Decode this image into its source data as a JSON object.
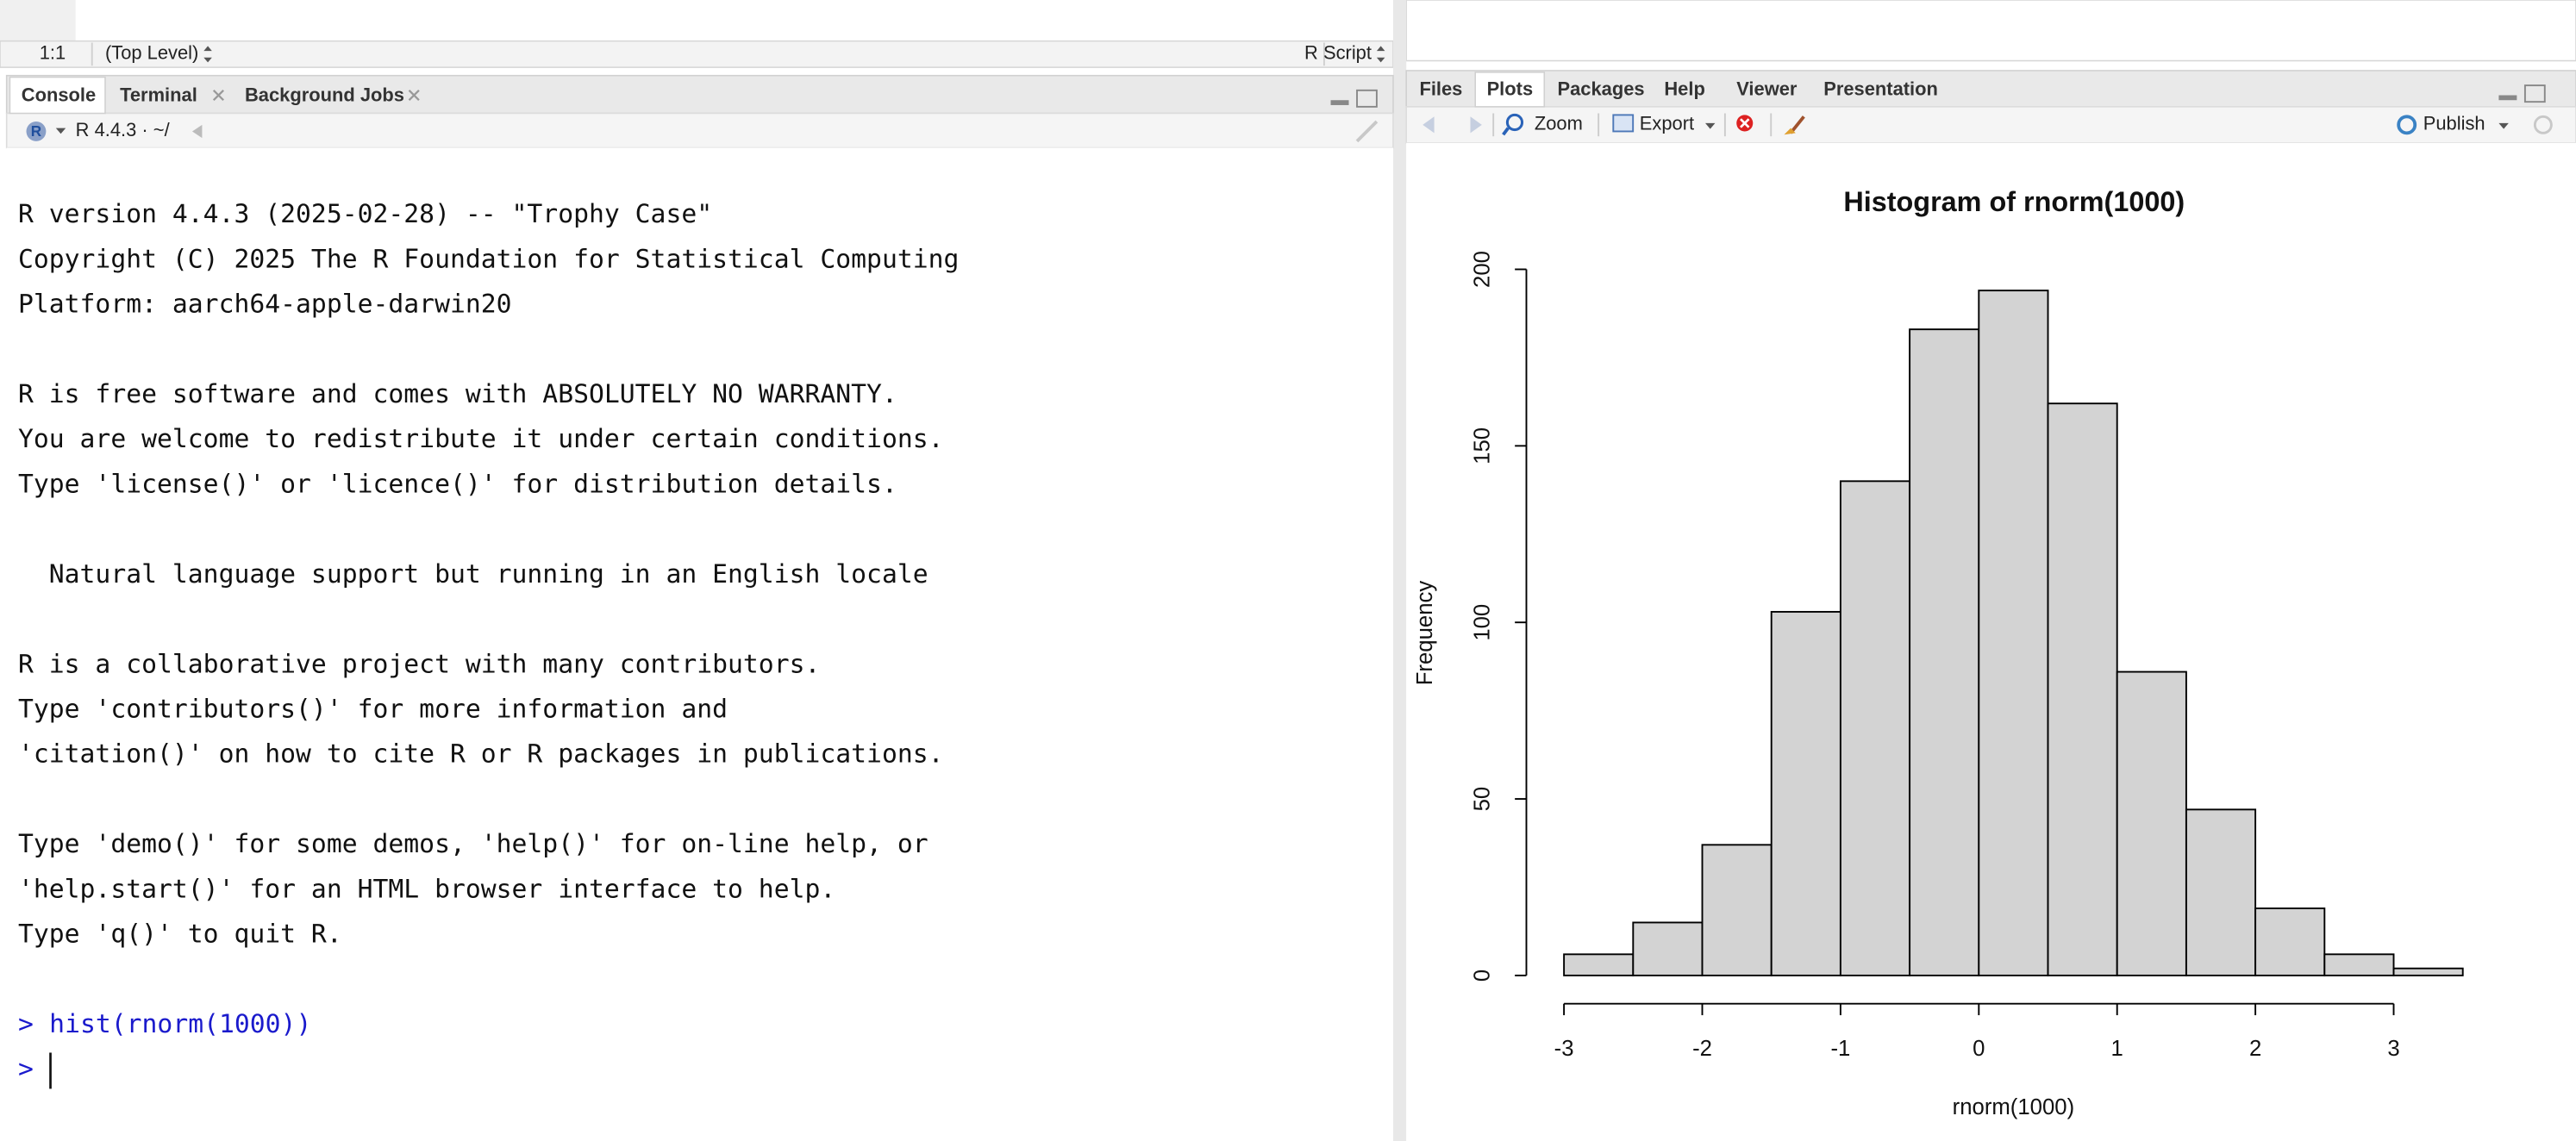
{
  "source_pane": {
    "cursor": "1:1",
    "scope": "(Top Level)",
    "file_type": "R Script"
  },
  "console_pane": {
    "tabs": [
      "Console",
      "Terminal",
      "Background Jobs"
    ],
    "r_version": "R 4.4.3 · ~/",
    "paragraphs": [
      [
        "R version 4.4.3 (2025-02-28) -- \"Trophy Case\"",
        "Copyright (C) 2025 The R Foundation for Statistical Computing",
        "Platform: aarch64-apple-darwin20"
      ],
      [
        "R is free software and comes with ABSOLUTELY NO WARRANTY.",
        "You are welcome to redistribute it under certain conditions.",
        "Type 'license()' or 'licence()' for distribution details."
      ],
      [
        "  Natural language support but running in an English locale"
      ],
      [
        "R is a collaborative project with many contributors.",
        "Type 'contributors()' for more information and",
        "'citation()' on how to cite R or R packages in publications."
      ],
      [
        "Type 'demo()' for some demos, 'help()' for on-line help, or",
        "'help.start()' for an HTML browser interface to help.",
        "Type 'q()' to quit R."
      ]
    ],
    "prompt": ">",
    "command": "hist(rnorm(1000))"
  },
  "plots_pane": {
    "tabs": [
      "Files",
      "Plots",
      "Packages",
      "Help",
      "Viewer",
      "Presentation"
    ],
    "zoom": "Zoom",
    "export": "Export",
    "publish": "Publish"
  },
  "chart_data": {
    "type": "histogram",
    "title": "Histogram of rnorm(1000)",
    "xlabel": "rnorm(1000)",
    "ylabel": "Frequency",
    "bins": [
      -3,
      -2.5,
      -2,
      -1.5,
      -1,
      -0.5,
      0,
      0.5,
      1,
      1.5,
      2,
      2.5,
      3,
      3.5
    ],
    "counts": [
      6,
      15,
      37,
      103,
      140,
      183,
      194,
      162,
      86,
      47,
      19,
      6,
      2
    ],
    "color": "#d3d3d3",
    "xlim": [
      -3.26,
      3.76
    ],
    "ylim": [
      -8,
      202
    ],
    "xticks": [
      -3,
      -2,
      -1,
      0,
      1,
      2,
      3
    ],
    "yticks": [
      0,
      50,
      100,
      150,
      200
    ]
  }
}
